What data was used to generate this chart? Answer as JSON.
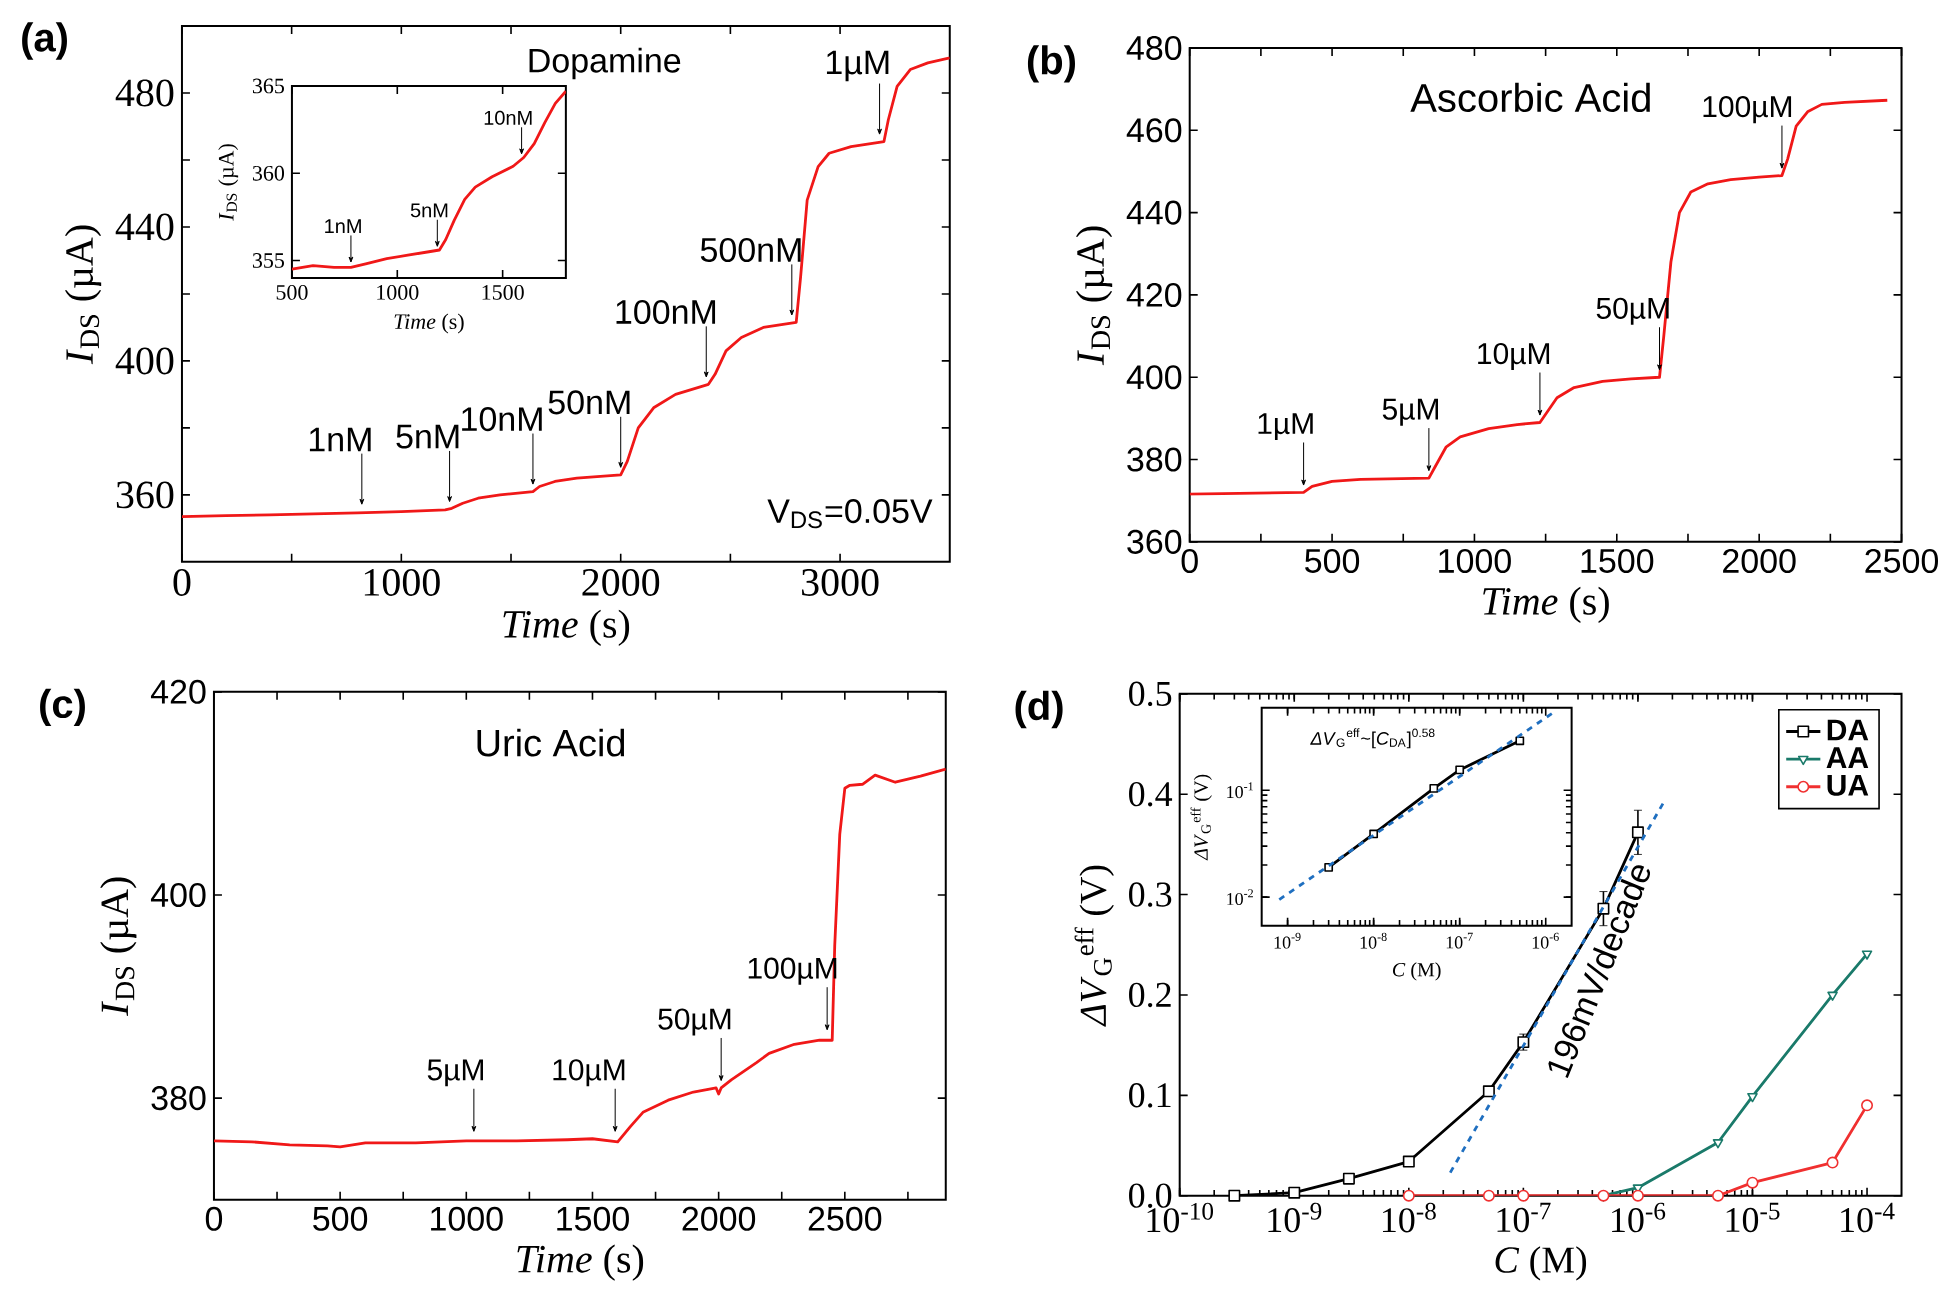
{
  "chart_data": [
    {
      "type": "line",
      "title": "(a)",
      "subtitle": "Dopamine",
      "xlabel": "*Time* (s)",
      "ylabel": "*I*$_{DS}$ (µA)",
      "xlim": [
        0,
        3500
      ],
      "ylim": [
        340,
        500
      ],
      "xticks": [
        0,
        {
          "value": 500,
          "label": null
        },
        1000,
        {
          "value": 1500,
          "label": null
        },
        2000,
        {
          "value": 2500,
          "label": null
        },
        3000
      ],
      "yticks": [
        360,
        {
          "value": 380,
          "label": null
        },
        400,
        {
          "value": 420,
          "label": null
        },
        440,
        {
          "value": 460,
          "label": null
        },
        480
      ],
      "x": [
        0,
        200,
        400,
        600,
        800,
        1000,
        1200,
        1230,
        1280,
        1350,
        1450,
        1600,
        1630,
        1700,
        1800,
        2000,
        2030,
        2080,
        2150,
        2250,
        2400,
        2430,
        2480,
        2550,
        2650,
        2800,
        2820,
        2850,
        2900,
        2950,
        3050,
        3200,
        3220,
        3260,
        3320,
        3400,
        3500
      ],
      "series": [
        {
          "color": "#f01818",
          "values": [
            353.5,
            353.8,
            354,
            354.3,
            354.6,
            355,
            355.5,
            356,
            357.5,
            359,
            360,
            361,
            362.5,
            364,
            365,
            366,
            370,
            380,
            386,
            390,
            393,
            396,
            403,
            407,
            410,
            411.5,
            425,
            448,
            458,
            462,
            464,
            465.5,
            472,
            482,
            487,
            489,
            490.5
          ]
        }
      ],
      "annotations": [
        {
          "text": "1nM",
          "x": 820,
          "y": 355
        },
        {
          "text": "5nM",
          "x": 1220,
          "y": 355.8
        },
        {
          "text": "10nM",
          "x": 1600,
          "y": 361
        },
        {
          "text": "50nM",
          "x": 2000,
          "y": 366
        },
        {
          "text": "100nM",
          "x": 2390,
          "y": 393
        },
        {
          "text": "500nM",
          "x": 2780,
          "y": 411.5
        },
        {
          "text": "1µM",
          "x": 3180,
          "y": 465.5
        },
        "V$_{DS}$=0.05V"
      ]
    },
    {
      "type": "line",
      "xlabel": "*Time* (s)",
      "ylabel": "*I*$_{DS}$ (µA)",
      "xlim": [
        500,
        1800
      ],
      "ylim": [
        354,
        365
      ],
      "xticks": [
        500,
        1000,
        1500
      ],
      "yticks": [
        355,
        360,
        365
      ],
      "x": [
        500,
        600,
        700,
        780,
        850,
        950,
        1050,
        1150,
        1200,
        1230,
        1270,
        1320,
        1370,
        1450,
        1550,
        1600,
        1650,
        1700,
        1750,
        1800
      ],
      "series": [
        {
          "color": "#f01818",
          "values": [
            354.5,
            354.7,
            354.6,
            354.6,
            354.8,
            355.1,
            355.3,
            355.5,
            355.6,
            356.2,
            357.3,
            358.5,
            359.2,
            359.8,
            360.4,
            360.9,
            361.7,
            362.9,
            364,
            364.7
          ]
        }
      ],
      "annotations": [
        {
          "text": "1nM",
          "x": 780,
          "y": 354.6
        },
        {
          "text": "5nM",
          "x": 1190,
          "y": 355.5
        },
        {
          "text": "10nM",
          "x": 1590,
          "y": 360.8
        }
      ]
    },
    {
      "type": "line",
      "title": "(b)",
      "subtitle": "Ascorbic Acid",
      "xlabel": "*Time* (s)",
      "ylabel": "*I*$_{DS}$ (µA)",
      "xlim": [
        0,
        2500
      ],
      "ylim": [
        360,
        480
      ],
      "xticks": [
        0,
        {
          "value": 250,
          "label": null
        },
        500,
        {
          "value": 750,
          "label": null
        },
        1000,
        {
          "value": 1250,
          "label": null
        },
        1500,
        {
          "value": 1750,
          "label": null
        },
        2000,
        {
          "value": 2250,
          "label": null
        },
        2500
      ],
      "yticks": [
        360,
        380,
        400,
        420,
        440,
        460,
        480
      ],
      "x": [
        0,
        200,
        400,
        430,
        500,
        600,
        840,
        860,
        900,
        950,
        1050,
        1150,
        1230,
        1250,
        1290,
        1350,
        1450,
        1550,
        1650,
        1665,
        1690,
        1720,
        1760,
        1820,
        1900,
        2000,
        2080,
        2100,
        2130,
        2170,
        2220,
        2300,
        2450
      ],
      "series": [
        {
          "color": "#f01818",
          "values": [
            371.6,
            371.8,
            372,
            373.5,
            374.7,
            375.2,
            375.5,
            378,
            383,
            385.5,
            387.5,
            388.5,
            389,
            391,
            395,
            397.5,
            399,
            399.6,
            400,
            410,
            428,
            440,
            445,
            447,
            448,
            448.6,
            449,
            453,
            461,
            464.5,
            466.3,
            466.8,
            467.3
          ]
        }
      ],
      "annotations": [
        {
          "text": "1µM",
          "x": 400,
          "y": 372
        },
        {
          "text": "5µM",
          "x": 840,
          "y": 375.5
        },
        {
          "text": "10µM",
          "x": 1230,
          "y": 389
        },
        {
          "text": "50µM",
          "x": 1650,
          "y": 400
        },
        {
          "text": "100µM",
          "x": 2080,
          "y": 449
        }
      ]
    },
    {
      "type": "line",
      "title": "(c)",
      "subtitle": "Uric Acid",
      "xlabel": "*Time* (s)",
      "ylabel": "*I*$_{DS}$ (µA)",
      "xlim": [
        0,
        2900
      ],
      "ylim": [
        370,
        420
      ],
      "xticks": [
        0,
        {
          "value": 250,
          "label": null
        },
        500,
        {
          "value": 750,
          "label": null
        },
        1000,
        {
          "value": 1250,
          "label": null
        },
        1500,
        {
          "value": 1750,
          "label": null
        },
        2000,
        {
          "value": 2250,
          "label": null
        },
        2500,
        {
          "value": 2750,
          "label": null
        }
      ],
      "yticks": [
        380,
        400,
        420
      ],
      "x": [
        0,
        150,
        300,
        450,
        500,
        600,
        800,
        1000,
        1200,
        1400,
        1500,
        1600,
        1650,
        1700,
        1800,
        1900,
        1990,
        2000,
        2010,
        2050,
        2150,
        2200,
        2300,
        2400,
        2450,
        2460,
        2480,
        2500,
        2520,
        2570,
        2620,
        2700,
        2800,
        2900
      ],
      "series": [
        {
          "color": "#f01818",
          "values": [
            375.8,
            375.7,
            375.4,
            375.3,
            375.2,
            375.6,
            375.6,
            375.8,
            375.8,
            375.9,
            376,
            375.7,
            377.2,
            378.6,
            379.8,
            380.6,
            381,
            380.4,
            381,
            381.8,
            383.5,
            384.4,
            385.3,
            385.7,
            385.7,
            395,
            406,
            410.5,
            410.8,
            410.9,
            411.8,
            411.1,
            411.7,
            412.4
          ]
        }
      ],
      "annotations": [
        {
          "text": "5µM",
          "x": 1030,
          "y": 376
        },
        {
          "text": "10µM",
          "x": 1590,
          "y": 376
        },
        {
          "text": "50µM",
          "x": 2010,
          "y": 381
        },
        {
          "text": "100µM",
          "x": 2430,
          "y": 386
        }
      ]
    },
    {
      "type": "line",
      "title": "(d)",
      "xlabel": "*C* (M)",
      "ylabel": "*ΔV*$_{G}$$^{eff}$ (V)",
      "log": "x",
      "xlim": [
        1e-10,
        0.0002
      ],
      "ylim": [
        0,
        0.5
      ],
      "xticks": [
        {
          "value": 1e-10,
          "label": "10$^{-10}$"
        },
        {
          "value": 1e-09,
          "label": "10$^{-9}$"
        },
        {
          "value": 1e-08,
          "label": "10$^{-8}$"
        },
        {
          "value": 1e-07,
          "label": "10$^{-7}$"
        },
        {
          "value": 1e-06,
          "label": "10$^{-6}$"
        },
        {
          "value": 1e-05,
          "label": "10$^{-5}$"
        },
        {
          "value": 0.0001,
          "label": "10$^{-4}$"
        }
      ],
      "yticks": [
        {
          "value": 0,
          "label": "0.0"
        },
        0.1,
        0.2,
        0.3,
        0.4,
        0.5
      ],
      "legend": "top right",
      "series": [
        {
          "name": "DA",
          "color": "#000000",
          "marker": "square",
          "x": [
            3e-10,
            1e-09,
            3e-09,
            1e-08,
            5e-08,
            1e-07,
            5e-07,
            1e-06
          ],
          "values": [
            0,
            0.003,
            0.017,
            0.034,
            0.104,
            0.153,
            0.286,
            0.362
          ],
          "errors": [
            null,
            null,
            null,
            null,
            null,
            0.008,
            0.017,
            0.022
          ]
        },
        {
          "name": "AA",
          "color": "#1a7a6a",
          "marker": "triangle",
          "x": [
            5e-07,
            1e-06,
            5e-06,
            1e-05,
            5e-05,
            0.0001
          ],
          "values": [
            0,
            0.008,
            0.053,
            0.099,
            0.2,
            0.241
          ]
        },
        {
          "name": "UA",
          "color": "#f03030",
          "marker": "circle",
          "x": [
            1e-08,
            5e-08,
            1e-07,
            5e-07,
            1e-06,
            5e-06,
            1e-05,
            5e-05,
            0.0001
          ],
          "values": [
            0,
            0,
            0,
            0,
            0,
            0,
            0.013,
            0.033,
            0.09
          ]
        },
        {
          "color": "#1f6fc0",
          "line_style": "dashed",
          "x": [
            2.3e-08,
            1.7e-06
          ],
          "values": [
            0.023,
            0.393
          ]
        }
      ],
      "annotations": [
        "196mV/decade"
      ]
    },
    {
      "type": "line",
      "xlabel": "*C* (M)",
      "ylabel": "*ΔV*$_{G}$$^{eff}$ (V)",
      "log": "xy",
      "xlim": [
        5e-10,
        2e-06
      ],
      "ylim": [
        0.0054,
        0.59
      ],
      "xticks": [
        {
          "value": 1e-09,
          "label": "10$^{-9}$"
        },
        {
          "value": 1e-08,
          "label": "10$^{-8}$"
        },
        {
          "value": 1e-07,
          "label": "10$^{-7}$"
        },
        {
          "value": 1e-06,
          "label": "10$^{-6}$"
        }
      ],
      "yticks": [
        {
          "value": 0.01,
          "label": "10$^{-2}$"
        },
        {
          "value": 0.1,
          "label": "10$^{-1}$"
        }
      ],
      "series": [
        {
          "color": "#000000",
          "marker": "square",
          "x": [
            3e-09,
            1e-08,
            5e-08,
            1e-07,
            5e-07
          ],
          "values": [
            0.019,
            0.039,
            0.104,
            0.155,
            0.29
          ]
        },
        {
          "color": "#1f6fc0",
          "line_style": "dashed",
          "x": [
            8e-10,
            1.3e-06
          ],
          "values": [
            0.0095,
            0.55
          ]
        }
      ],
      "annotations": [
        "*ΔV*$_{G}$$^{eff}$~[*C*$_{DA}$]$^{0.58}$"
      ]
    }
  ]
}
